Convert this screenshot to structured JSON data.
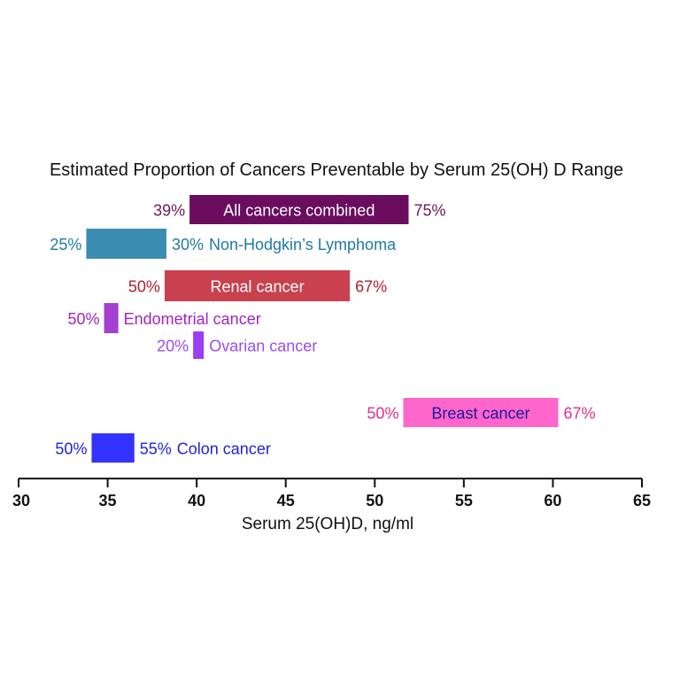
{
  "chart_data": {
    "type": "bar",
    "orientation": "horizontal-range",
    "title": "Estimated Proportion of Cancers Preventable by Serum 25(OH) D Range",
    "xlabel": "Serum 25(OH)D, ng/ml",
    "ylabel": "",
    "xlim": [
      30,
      65
    ],
    "xticks": [
      "30",
      "35",
      "40",
      "45",
      "50",
      "55",
      "60",
      "65"
    ],
    "grid": false,
    "series": [
      {
        "name": "All cancers combined",
        "start": 39.6,
        "end": 51.9,
        "left_label": "39%",
        "right_label": "75%",
        "name_position": "inside",
        "color": "#6a0d5f",
        "label_color": "#6b1a5e",
        "name_color": "#ffffff"
      },
      {
        "name": "Non-Hodgkin’s Lymphoma",
        "start": 33.8,
        "end": 38.3,
        "left_label": "25%",
        "right_label": "30%",
        "name_position": "right",
        "color": "#3a8db0",
        "label_color": "#1f7aa2",
        "name_color": "#1f7aa2"
      },
      {
        "name": "Renal cancer",
        "start": 38.2,
        "end": 48.6,
        "left_label": "50%",
        "right_label": "67%",
        "name_position": "inside",
        "color": "#c9414f",
        "label_color": "#b32030",
        "name_color": "#ffffff"
      },
      {
        "name": "Endometrial cancer",
        "start": 34.8,
        "end": 35.6,
        "left_label": "50%",
        "right_label": "",
        "name_position": "right",
        "color": "#a43fcf",
        "label_color": "#a324c4",
        "name_color": "#a324c4"
      },
      {
        "name": "Ovarian cancer",
        "start": 39.8,
        "end": 40.4,
        "left_label": "20%",
        "right_label": "",
        "name_position": "right",
        "color": "#9a3ff2",
        "label_color": "#9b4df0",
        "name_color": "#9b4df0"
      },
      {
        "name": "Breast cancer",
        "start": 51.6,
        "end": 60.3,
        "left_label": "50%",
        "right_label": "67%",
        "name_position": "inside",
        "color": "#ff66cc",
        "label_color": "#e0308c",
        "name_color": "#1a1a9a"
      },
      {
        "name": "Colon cancer",
        "start": 34.1,
        "end": 36.5,
        "left_label": "50%",
        "right_label": "55%",
        "name_position": "right",
        "color": "#3333ff",
        "label_color": "#2222dd",
        "name_color": "#2222dd"
      }
    ]
  }
}
